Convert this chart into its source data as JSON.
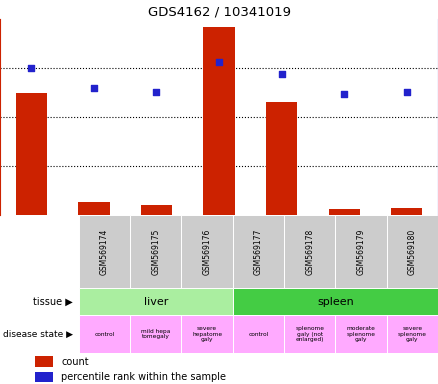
{
  "title": "GDS4162 / 10341019",
  "samples": [
    "GSM569174",
    "GSM569175",
    "GSM569176",
    "GSM569177",
    "GSM569178",
    "GSM569179",
    "GSM569180"
  ],
  "counts": [
    225,
    113,
    110,
    292,
    215,
    106,
    107
  ],
  "percentile_ranks": [
    75,
    65,
    63,
    78,
    72,
    62,
    63
  ],
  "ylim_left": [
    100,
    300
  ],
  "ylim_right": [
    0,
    100
  ],
  "yticks_left": [
    100,
    150,
    200,
    250,
    300
  ],
  "yticks_right": [
    0,
    25,
    50,
    75,
    100
  ],
  "bar_color": "#cc2200",
  "dot_color": "#2222cc",
  "tick_color_left": "#cc2200",
  "tick_color_right": "#2222cc",
  "tissue_liver_color": "#aaeea0",
  "tissue_spleen_color": "#44cc44",
  "disease_color": "#ffaaff",
  "sample_bg_color": "#cccccc",
  "disease_labels": [
    "control",
    "mild hepa\ntomegaly",
    "severe\nhepatome\ngaly",
    "control",
    "splenome\ngaly (not\nenlarged)",
    "moderate\nsplenome\ngaly",
    "severe\nsplenome\ngaly"
  ],
  "legend_count_label": "count",
  "legend_percentile_label": "percentile rank within the sample",
  "left_label_color": "#888888"
}
